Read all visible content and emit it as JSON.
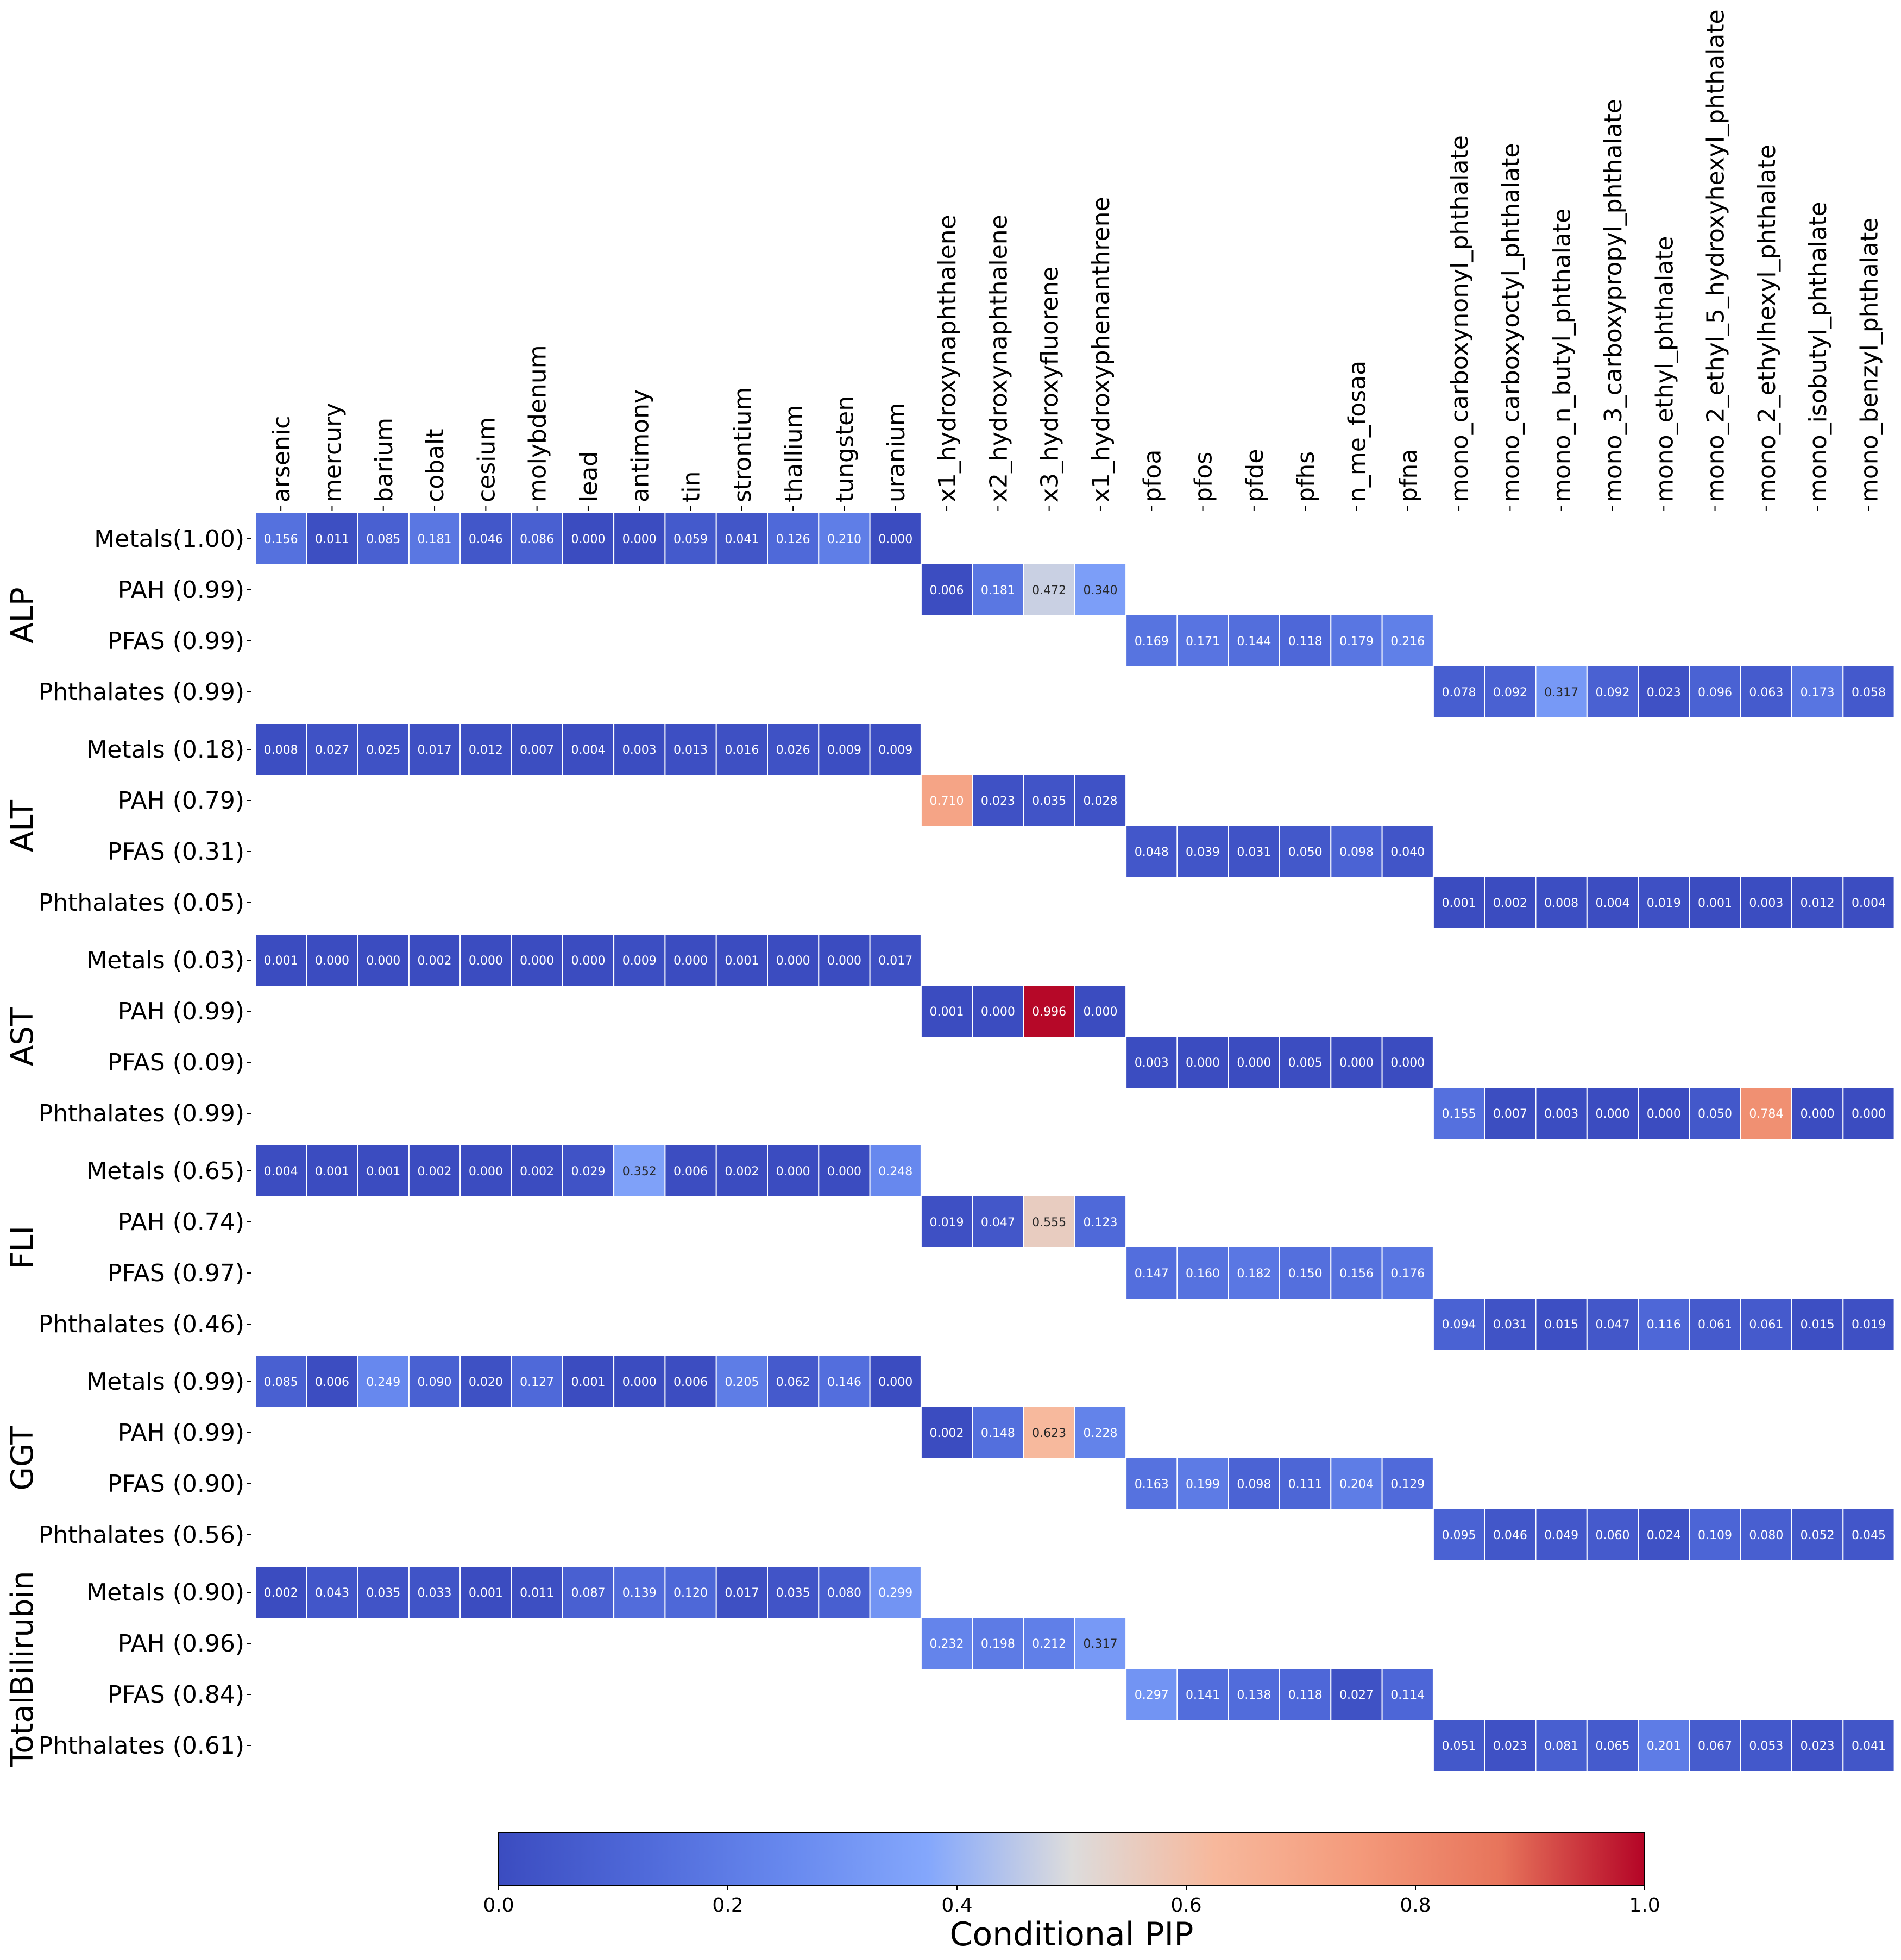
{
  "chart_data": {
    "type": "heatmap",
    "colorbar": {
      "title": "Conditional PIP",
      "range": [
        0.0,
        1.0
      ],
      "ticks": [
        "0.0",
        "0.2",
        "0.4",
        "0.6",
        "0.8",
        "1.0"
      ]
    },
    "columns": [
      "arsenic",
      "mercury",
      "barium",
      "cobalt",
      "cesium",
      "molybdenum",
      "lead",
      "antimony",
      "tin",
      "strontium",
      "thallium",
      "tungsten",
      "uranium",
      "x1_hydroxynaphthalene",
      "x2_hydroxynaphthalene",
      "x3_hydroxyfluorene",
      "x1_hydroxyphenanthrene",
      "pfoa",
      "pfos",
      "pfde",
      "pfhs",
      "n_me_fosaa",
      "pfna",
      "mono_carboxynonyl_phthalate",
      "mono_carboxyoctyl_phthalate",
      "mono_n_butyl_phthalate",
      "mono_3_carboxypropyl_phthalate",
      "mono_ethyl_phthalate",
      "mono_2_ethyl_5_hydroxyhexyl_phthalate",
      "mono_2_ethylhexyl_phthalate",
      "mono_isobutyl_phthalate",
      "mono_benzyl_phthalate"
    ],
    "outcomes": [
      {
        "name": "ALP",
        "rows": [
          {
            "label": "Metals(1.00)",
            "start": 0,
            "values": [
              0.156,
              0.011,
              0.085,
              0.181,
              0.046,
              0.086,
              0.0,
              0.0,
              0.059,
              0.041,
              0.126,
              0.21,
              0.0
            ]
          },
          {
            "label": "PAH (0.99)",
            "start": 13,
            "values": [
              0.006,
              0.181,
              0.472,
              0.34
            ]
          },
          {
            "label": "PFAS (0.99)",
            "start": 17,
            "values": [
              0.169,
              0.171,
              0.144,
              0.118,
              0.179,
              0.216
            ]
          },
          {
            "label": "Phthalates (0.99)",
            "start": 23,
            "values": [
              0.078,
              0.092,
              0.317,
              0.092,
              0.023,
              0.096,
              0.063,
              0.173,
              0.058
            ]
          }
        ]
      },
      {
        "name": "ALT",
        "rows": [
          {
            "label": "Metals (0.18)",
            "start": 0,
            "values": [
              0.008,
              0.027,
              0.025,
              0.017,
              0.012,
              0.007,
              0.004,
              0.003,
              0.013,
              0.016,
              0.026,
              0.009,
              0.009
            ]
          },
          {
            "label": "PAH (0.79)",
            "start": 13,
            "values": [
              0.71,
              0.023,
              0.035,
              0.028
            ]
          },
          {
            "label": "PFAS (0.31)",
            "start": 17,
            "values": [
              0.048,
              0.039,
              0.031,
              0.05,
              0.098,
              0.04
            ]
          },
          {
            "label": "Phthalates (0.05)",
            "start": 23,
            "values": [
              0.001,
              0.002,
              0.008,
              0.004,
              0.019,
              0.001,
              0.003,
              0.012,
              0.004
            ]
          }
        ]
      },
      {
        "name": "AST",
        "rows": [
          {
            "label": "Metals (0.03)",
            "start": 0,
            "values": [
              0.001,
              0.0,
              0.0,
              0.002,
              0.0,
              0.0,
              0.0,
              0.009,
              0.0,
              0.001,
              0.0,
              0.0,
              0.017
            ]
          },
          {
            "label": "PAH (0.99)",
            "start": 13,
            "values": [
              0.001,
              0.0,
              0.996,
              0.0
            ]
          },
          {
            "label": "PFAS (0.09)",
            "start": 17,
            "values": [
              0.003,
              0.0,
              0.0,
              0.005,
              0.0,
              0.0
            ]
          },
          {
            "label": "Phthalates (0.99)",
            "start": 23,
            "values": [
              0.155,
              0.007,
              0.003,
              0.0,
              0.0,
              0.05,
              0.784,
              0.0,
              0.0
            ]
          }
        ]
      },
      {
        "name": "FLI",
        "rows": [
          {
            "label": "Metals (0.65)",
            "start": 0,
            "values": [
              0.004,
              0.001,
              0.001,
              0.002,
              0.0,
              0.002,
              0.029,
              0.352,
              0.006,
              0.002,
              0.0,
              0.0,
              0.248
            ]
          },
          {
            "label": "PAH (0.74)",
            "start": 13,
            "values": [
              0.019,
              0.047,
              0.555,
              0.123
            ]
          },
          {
            "label": "PFAS (0.97)",
            "start": 17,
            "values": [
              0.147,
              0.16,
              0.182,
              0.15,
              0.156,
              0.176
            ]
          },
          {
            "label": "Phthalates (0.46)",
            "start": 23,
            "values": [
              0.094,
              0.031,
              0.015,
              0.047,
              0.116,
              0.061,
              0.061,
              0.015,
              0.019
            ]
          }
        ]
      },
      {
        "name": "GGT",
        "rows": [
          {
            "label": "Metals (0.99)",
            "start": 0,
            "values": [
              0.085,
              0.006,
              0.249,
              0.09,
              0.02,
              0.127,
              0.001,
              0.0,
              0.006,
              0.205,
              0.062,
              0.146,
              0.0
            ]
          },
          {
            "label": "PAH (0.99)",
            "start": 13,
            "values": [
              0.002,
              0.148,
              0.623,
              0.228
            ]
          },
          {
            "label": "PFAS (0.90)",
            "start": 17,
            "values": [
              0.163,
              0.199,
              0.098,
              0.111,
              0.204,
              0.129
            ]
          },
          {
            "label": "Phthalates (0.56)",
            "start": 23,
            "values": [
              0.095,
              0.046,
              0.049,
              0.06,
              0.024,
              0.109,
              0.08,
              0.052,
              0.045
            ]
          }
        ]
      },
      {
        "name": "TotalBilirubin",
        "rows": [
          {
            "label": "Metals (0.90)",
            "start": 0,
            "values": [
              0.002,
              0.043,
              0.035,
              0.033,
              0.001,
              0.011,
              0.087,
              0.139,
              0.12,
              0.017,
              0.035,
              0.08,
              0.299
            ]
          },
          {
            "label": "PAH (0.96)",
            "start": 13,
            "values": [
              0.232,
              0.198,
              0.212,
              0.317
            ]
          },
          {
            "label": "PFAS (0.84)",
            "start": 17,
            "values": [
              0.297,
              0.141,
              0.138,
              0.118,
              0.027,
              0.114
            ]
          },
          {
            "label": "Phthalates (0.61)",
            "start": 23,
            "values": [
              0.051,
              0.023,
              0.081,
              0.065,
              0.201,
              0.067,
              0.053,
              0.023,
              0.041
            ]
          }
        ]
      }
    ]
  }
}
